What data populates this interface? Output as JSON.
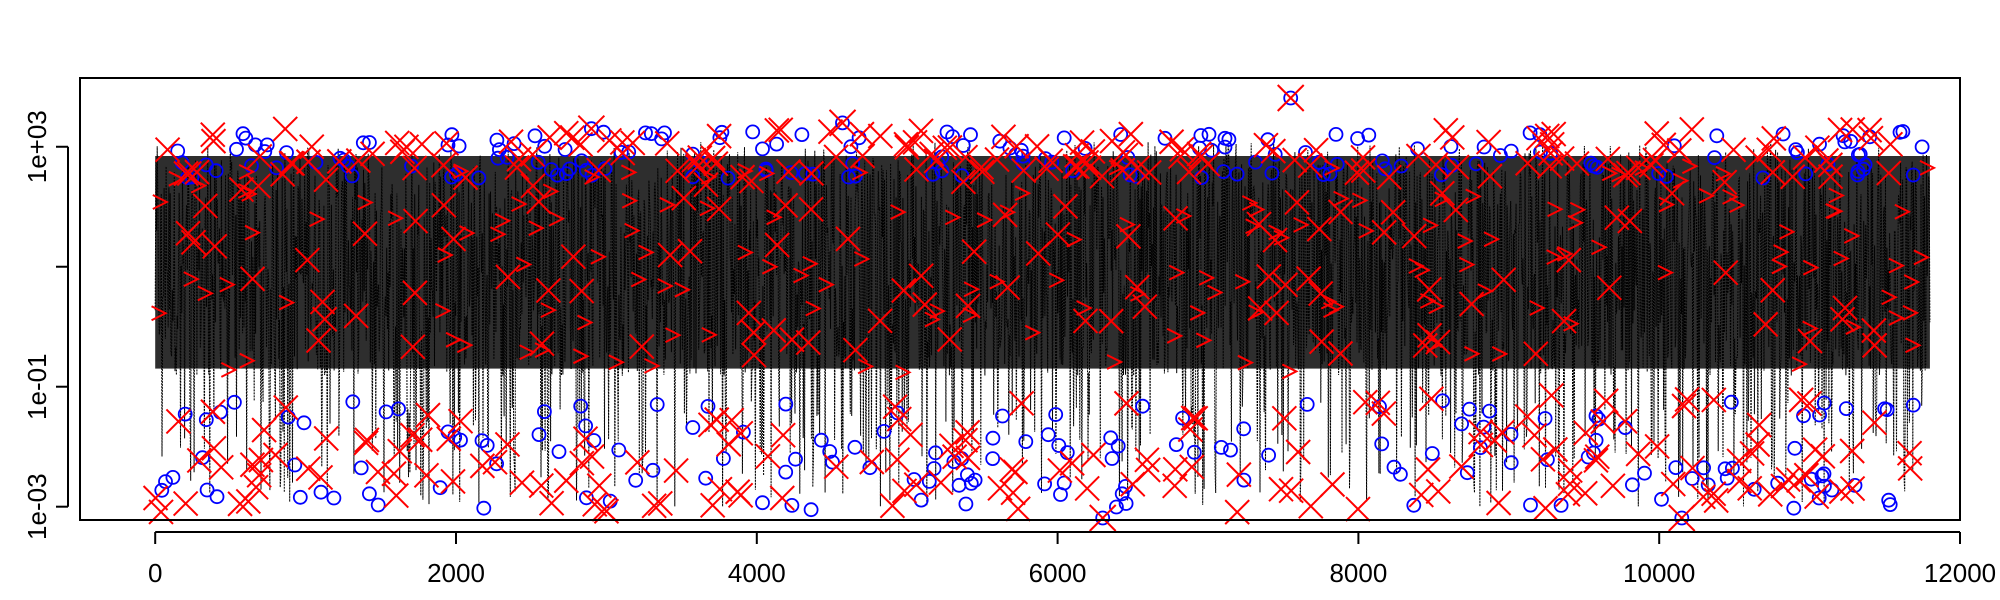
{
  "chart_data": {
    "type": "line",
    "title": "",
    "xlabel": "",
    "ylabel": "",
    "x_range": [
      0,
      11800
    ],
    "xlim": [
      -500,
      12000
    ],
    "ylim": [
      0.0006,
      14000
    ],
    "y_scale": "log",
    "grid": false,
    "legend": "none",
    "x_ticks": [
      0,
      2000,
      4000,
      6000,
      8000,
      10000,
      12000
    ],
    "x_tick_labels": [
      "0",
      "2000",
      "4000",
      "6000",
      "8000",
      "10000",
      "12000"
    ],
    "y_ticks": [
      0.001,
      0.1,
      1000
    ],
    "y_tick_labels": [
      "1e-03",
      "1e-01",
      "1e+03"
    ],
    "series": [
      {
        "style": "dotted-line",
        "color": "#000000",
        "band_upper": [
          600,
          1200
        ],
        "band_lower": [
          0.001,
          0.05
        ]
      },
      {
        "style": "circle-markers",
        "color": "#0000ff"
      },
      {
        "style": "x-markers",
        "color": "#ff0000"
      }
    ],
    "highlighted_points": [
      {
        "x": 7550,
        "y": 6500
      },
      {
        "x": 4570,
        "y": 2500
      },
      {
        "x": 2900,
        "y": 2000
      },
      {
        "x": 6300,
        "y": 0.0006
      },
      {
        "x": 10150,
        "y": 0.0006
      }
    ]
  },
  "colors": {
    "line": "#000000",
    "circles": "#0000ff",
    "crosses": "#ff0000",
    "axis": "#000000"
  }
}
